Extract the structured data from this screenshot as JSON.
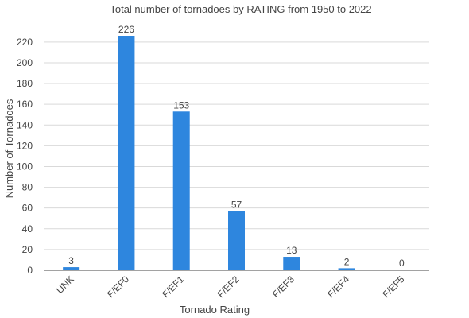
{
  "chart_data": {
    "type": "bar",
    "title": "Total number of tornadoes by RATING from 1950 to 2022",
    "xlabel": "Tornado Rating",
    "ylabel": "Number of Tornadoes",
    "categories": [
      "UNK",
      "F/EF0",
      "F/EF1",
      "F/EF2",
      "F/EF3",
      "F/EF4",
      "F/EF5"
    ],
    "values": [
      3,
      226,
      153,
      57,
      13,
      2,
      0
    ],
    "ylim": [
      0,
      226
    ],
    "yticks": [
      0,
      20,
      40,
      60,
      80,
      100,
      120,
      140,
      160,
      180,
      200,
      220
    ],
    "grid": true,
    "bar_color": "#2e86de"
  }
}
